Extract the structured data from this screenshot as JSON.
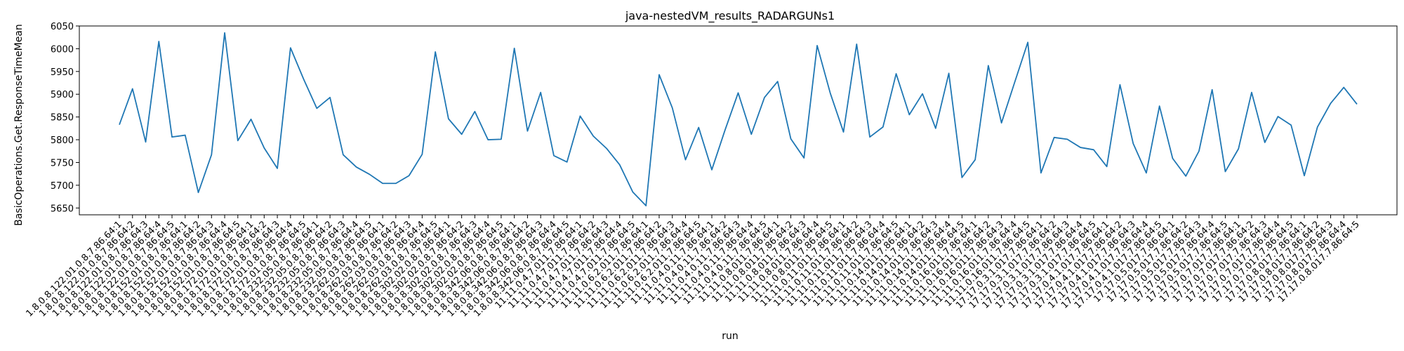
{
  "chart_data": {
    "type": "line",
    "title": "java-nestedVM_results_RADARGUNs1",
    "xlabel": "run",
    "ylabel": "BasicOperations.Get.ResponseTimeMean",
    "ylim": [
      5635,
      6050
    ],
    "yticks": [
      5650,
      5700,
      5750,
      5800,
      5850,
      5900,
      5950,
      6000,
      6050
    ],
    "grid": false,
    "line_color": "#1f77b4",
    "categories": [
      "1.8.0.8.122.01.0.8.7.86.64:1",
      "1.8.0.8.122.01.0.8.7.86.64:2",
      "1.8.0.8.122.01.0.8.7.86.64:3",
      "1.8.0.8.122.01.0.8.7.86.64:4",
      "1.8.0.8.122.01.0.8.7.86.64:5",
      "1.8.0.8.152.01.0.8.7.86.64:1",
      "1.8.0.8.152.01.0.8.7.86.64:2",
      "1.8.0.8.152.01.0.8.7.86.64:3",
      "1.8.0.8.152.01.0.8.7.86.64:4",
      "1.8.0.8.152.01.0.8.7.86.64:5",
      "1.8.0.8.172.01.0.8.7.86.64:1",
      "1.8.0.8.172.01.0.8.7.86.64:2",
      "1.8.0.8.172.01.0.8.7.86.64:3",
      "1.8.0.8.172.01.0.8.7.86.64:4",
      "1.8.0.8.172.01.0.8.7.86.64:5",
      "1.8.0.8.232.05.0.8.7.86.64:1",
      "1.8.0.8.232.05.0.8.7.86.64:2",
      "1.8.0.8.232.05.0.8.7.86.64:3",
      "1.8.0.8.232.05.0.8.7.86.64:4",
      "1.8.0.8.232.05.0.8.7.86.64:5",
      "1.8.0.8.262.03.0.8.7.86.64:1",
      "1.8.0.8.262.03.0.8.7.86.64:2",
      "1.8.0.8.262.03.0.8.7.86.64:3",
      "1.8.0.8.262.03.0.8.7.86.64:4",
      "1.8.0.8.262.03.0.8.7.86.64:5",
      "1.8.0.8.302.02.0.8.7.86.64:1",
      "1.8.0.8.302.02.0.8.7.86.64:2",
      "1.8.0.8.302.02.0.8.7.86.64:3",
      "1.8.0.8.302.02.0.8.7.86.64:4",
      "1.8.0.8.302.02.0.8.7.86.64:5",
      "1.8.0.8.342.06.0.8.7.86.64:1",
      "1.8.0.8.342.06.0.8.7.86.64:2",
      "1.8.0.8.342.06.0.8.7.86.64:3",
      "1.8.0.8.342.06.0.8.7.86.64:4",
      "1.8.0.8.342.06.0.8.7.86.64:5",
      "11.11.0.4.7.011.7.86.64:1",
      "11.11.0.4.7.011.7.86.64:2",
      "11.11.0.4.7.011.7.86.64:3",
      "11.11.0.4.7.011.7.86.64:4",
      "11.11.0.4.7.011.7.86.64:5",
      "11.11.0.6.2.011.7.86.64:1",
      "11.11.0.6.2.011.7.86.64:2",
      "11.11.0.6.2.011.7.86.64:3",
      "11.11.0.6.2.011.7.86.64:4",
      "11.11.0.6.2.011.7.86.64:5",
      "11.11.0.4.0.11.7.86.64:1",
      "11.11.0.4.0.11.7.86.64:2",
      "11.11.0.4.0.11.7.86.64:3",
      "11.11.0.4.0.11.7.86.64:4",
      "11.11.0.4.0.11.7.86.64:5",
      "11.11.0.8.011.7.86.64:1",
      "11.11.0.8.011.7.86.64:2",
      "11.11.0.8.011.7.86.64:3",
      "11.11.0.8.011.7.86.64:4",
      "11.11.0.8.011.7.86.64:5",
      "11.11.0.11.011.7.86.64:1",
      "11.11.0.11.011.7.86.64:2",
      "11.11.0.11.011.7.86.64:3",
      "11.11.0.11.011.7.86.64:4",
      "11.11.0.11.011.7.86.64:5",
      "11.11.0.14.011.7.86.64:1",
      "11.11.0.14.011.7.86.64:2",
      "11.11.0.14.011.7.86.64:3",
      "11.11.0.14.011.7.86.64:4",
      "11.11.0.14.011.7.86.64:5",
      "11.11.0.16.011.7.86.64:1",
      "11.11.0.16.011.7.86.64:2",
      "11.11.0.16.011.7.86.64:3",
      "11.11.0.16.011.7.86.64:4",
      "11.11.0.16.011.7.86.64:5",
      "17.17.0.3.1.017.7.86.64:1",
      "17.17.0.3.1.017.7.86.64:2",
      "17.17.0.3.1.017.7.86.64:3",
      "17.17.0.3.1.017.7.86.64:4",
      "17.17.0.3.1.017.7.86.64:5",
      "17.17.0.4.1.017.7.86.64:1",
      "17.17.0.4.1.017.7.86.64:2",
      "17.17.0.4.1.017.7.86.64:3",
      "17.17.0.4.1.017.7.86.64:4",
      "17.17.0.4.1.017.7.86.64:5",
      "17.17.0.5.017.7.86.64:1",
      "17.17.0.5.017.7.86.64:2",
      "17.17.0.5.017.7.86.64:3",
      "17.17.0.5.017.7.86.64:4",
      "17.17.0.5.017.7.86.64:5",
      "17.17.0.7.017.7.86.64:1",
      "17.17.0.7.017.7.86.64:2",
      "17.17.0.7.017.7.86.64:3",
      "17.17.0.7.017.7.86.64:4",
      "17.17.0.7.017.7.86.64:5",
      "17.17.0.8.017.7.86.64:1",
      "17.17.0.8.017.7.86.64:2",
      "17.17.0.8.017.7.86.64:3",
      "17.17.0.8.017.7.86.64:4",
      "17.17.0.8.017.7.86.64:5"
    ],
    "series": [
      {
        "values": [
          5833,
          5912,
          5795,
          6016,
          5806,
          5810,
          5684,
          5767,
          6035,
          5798,
          5845,
          5782,
          5737,
          6002,
          5933,
          5869,
          5893,
          5767,
          5740,
          5724,
          5704,
          5704,
          5721,
          5768,
          5993,
          5846,
          5812,
          5862,
          5800,
          5801,
          6001,
          5819,
          5904,
          5765,
          5751,
          5852,
          5808,
          5781,
          5745,
          5685,
          5655,
          5943,
          5870,
          5756,
          5827,
          5734,
          5821,
          5903,
          5812,
          5893,
          5928,
          5802,
          5760,
          6007,
          5902,
          5817,
          6010,
          5806,
          5828,
          5945,
          5855,
          5901,
          5825,
          5946,
          5717,
          5756,
          5963,
          5837,
          5926,
          6014,
          5727,
          5805,
          5801,
          5783,
          5778,
          5741,
          5921,
          5792,
          5727,
          5874,
          5759,
          5720,
          5775,
          5910,
          5730,
          5780,
          5904,
          5794,
          5851,
          5832,
          5721,
          5828,
          5880,
          5915,
          5878
        ]
      }
    ]
  }
}
